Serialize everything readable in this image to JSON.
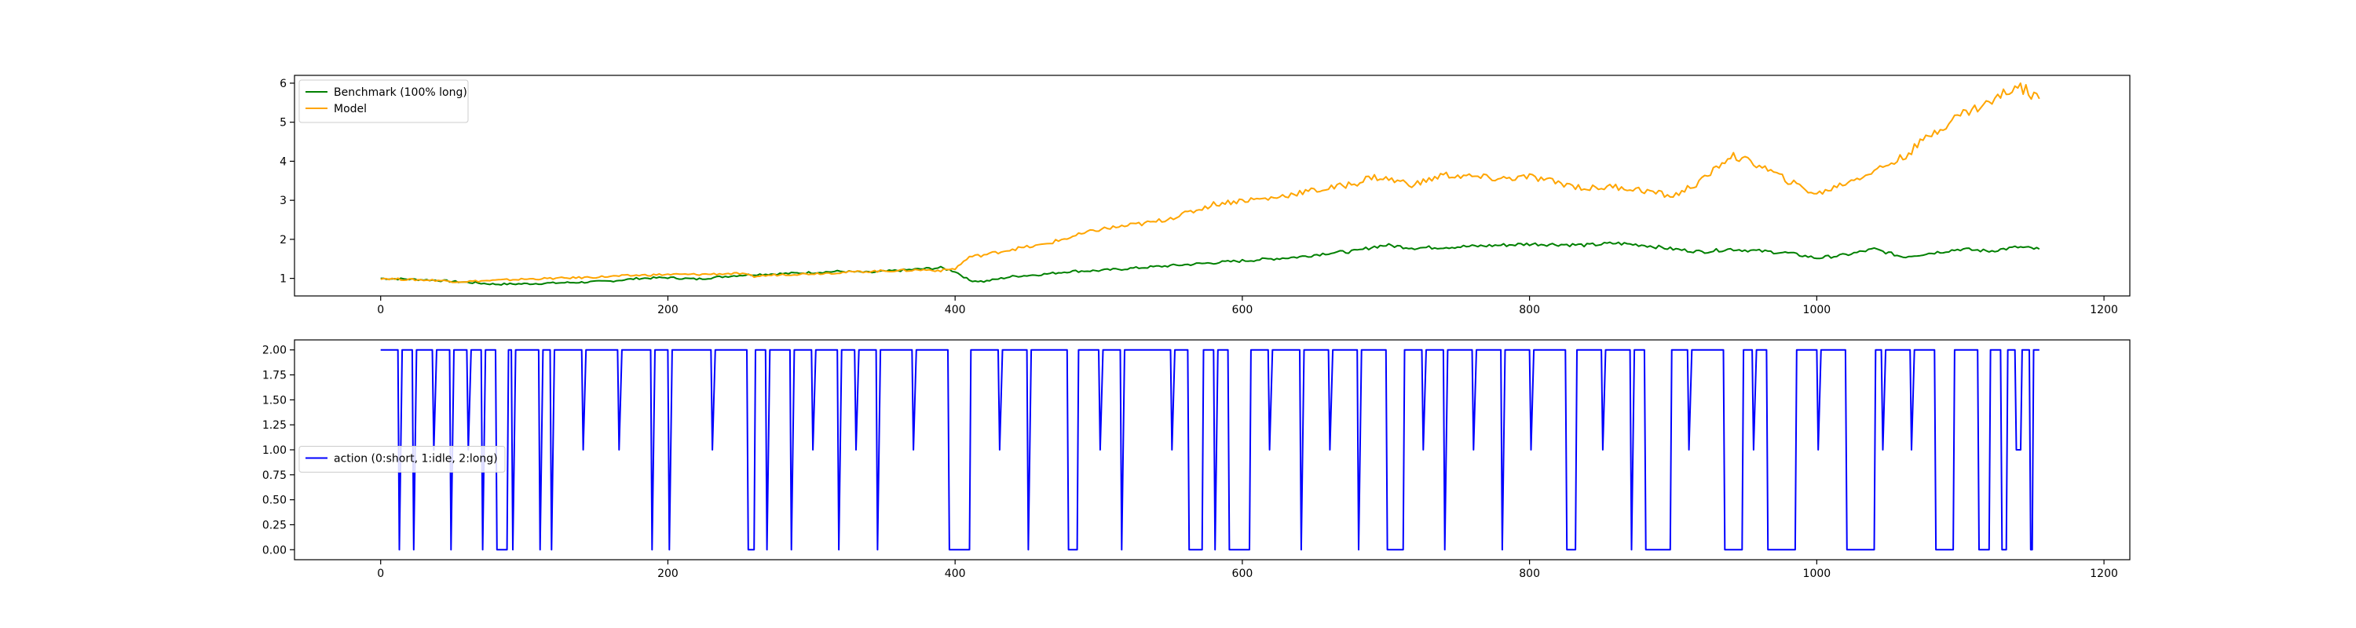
{
  "chart_data": [
    {
      "type": "line",
      "title": "",
      "xlabel": "",
      "ylabel": "",
      "xlim": [
        -60,
        1218
      ],
      "ylim": [
        0.55,
        6.2
      ],
      "xticks": [
        0,
        200,
        400,
        600,
        800,
        1000,
        1200
      ],
      "yticks": [
        1,
        2,
        3,
        4,
        5,
        6
      ],
      "grid": false,
      "legend": {
        "placement": "upper-left"
      },
      "series": [
        {
          "name": "Benchmark (100% long)",
          "color": "#008000",
          "x": [
            0,
            20,
            40,
            50,
            60,
            80,
            100,
            120,
            140,
            160,
            180,
            200,
            220,
            240,
            250,
            260,
            280,
            300,
            320,
            340,
            360,
            380,
            390,
            400,
            410,
            420,
            440,
            460,
            480,
            500,
            520,
            540,
            560,
            580,
            600,
            620,
            640,
            660,
            680,
            690,
            700,
            720,
            740,
            760,
            780,
            800,
            820,
            840,
            860,
            880,
            900,
            920,
            940,
            960,
            980,
            1000,
            1020,
            1040,
            1060,
            1080,
            1100,
            1120,
            1140,
            1155
          ],
          "y": [
            1.0,
            0.98,
            0.95,
            0.92,
            0.9,
            0.85,
            0.86,
            0.88,
            0.9,
            0.93,
            1.0,
            1.02,
            0.98,
            1.05,
            1.08,
            1.1,
            1.12,
            1.15,
            1.18,
            1.15,
            1.2,
            1.25,
            1.27,
            1.18,
            0.95,
            0.92,
            1.05,
            1.1,
            1.18,
            1.2,
            1.25,
            1.3,
            1.35,
            1.4,
            1.45,
            1.5,
            1.55,
            1.65,
            1.7,
            1.8,
            1.85,
            1.78,
            1.8,
            1.82,
            1.85,
            1.88,
            1.87,
            1.85,
            1.9,
            1.85,
            1.75,
            1.68,
            1.75,
            1.7,
            1.65,
            1.52,
            1.6,
            1.75,
            1.55,
            1.65,
            1.75,
            1.7,
            1.8,
            1.75
          ]
        },
        {
          "name": "Model",
          "color": "#FFA500",
          "x": [
            0,
            20,
            40,
            50,
            60,
            80,
            100,
            120,
            140,
            160,
            180,
            200,
            220,
            240,
            250,
            260,
            280,
            300,
            320,
            340,
            360,
            380,
            390,
            400,
            410,
            420,
            440,
            460,
            480,
            500,
            520,
            540,
            560,
            580,
            600,
            620,
            640,
            660,
            680,
            690,
            700,
            720,
            740,
            760,
            780,
            800,
            820,
            840,
            860,
            880,
            900,
            920,
            940,
            960,
            980,
            1000,
            1020,
            1040,
            1060,
            1080,
            1100,
            1120,
            1140,
            1155
          ],
          "y": [
            1.0,
            0.97,
            0.95,
            0.92,
            0.92,
            0.95,
            0.98,
            1.0,
            1.02,
            1.05,
            1.08,
            1.1,
            1.1,
            1.12,
            1.12,
            1.05,
            1.1,
            1.12,
            1.15,
            1.18,
            1.2,
            1.22,
            1.2,
            1.25,
            1.55,
            1.6,
            1.75,
            1.85,
            2.05,
            2.25,
            2.35,
            2.45,
            2.65,
            2.9,
            3.0,
            3.05,
            3.2,
            3.3,
            3.45,
            3.6,
            3.55,
            3.4,
            3.65,
            3.6,
            3.55,
            3.6,
            3.45,
            3.3,
            3.35,
            3.25,
            3.1,
            3.5,
            4.15,
            3.9,
            3.5,
            3.15,
            3.45,
            3.75,
            4.1,
            4.7,
            5.2,
            5.5,
            5.95,
            5.6
          ]
        }
      ]
    },
    {
      "type": "line",
      "title": "",
      "xlabel": "",
      "ylabel": "",
      "xlim": [
        -60,
        1218
      ],
      "ylim": [
        -0.1,
        2.1
      ],
      "xticks": [
        0,
        200,
        400,
        600,
        800,
        1000,
        1200
      ],
      "yticks": [
        0.0,
        0.25,
        0.5,
        0.75,
        1.0,
        1.25,
        1.5,
        1.75,
        2.0
      ],
      "ytick_labels": [
        "0.00",
        "0.25",
        "0.50",
        "0.75",
        "1.00",
        "1.25",
        "1.50",
        "1.75",
        "2.00"
      ],
      "grid": false,
      "legend": {
        "placement": "center-left"
      },
      "series": [
        {
          "name": "action (0:short, 1:idle, 2:long)",
          "color": "#0000FF",
          "segments": [
            [
              0,
              2
            ],
            [
              12,
              2
            ],
            [
              13,
              0
            ],
            [
              15,
              2
            ],
            [
              22,
              2
            ],
            [
              23,
              0
            ],
            [
              25,
              2
            ],
            [
              36,
              2
            ],
            [
              37,
              1
            ],
            [
              39,
              2
            ],
            [
              48,
              2
            ],
            [
              49,
              0
            ],
            [
              51,
              2
            ],
            [
              60,
              2
            ],
            [
              61,
              1
            ],
            [
              63,
              2
            ],
            [
              70,
              2
            ],
            [
              71,
              0
            ],
            [
              73,
              2
            ],
            [
              80,
              2
            ],
            [
              81,
              0
            ],
            [
              88,
              0
            ],
            [
              89,
              2
            ],
            [
              91,
              2
            ],
            [
              92,
              0
            ],
            [
              94,
              2
            ],
            [
              110,
              2
            ],
            [
              111,
              0
            ],
            [
              113,
              2
            ],
            [
              118,
              2
            ],
            [
              119,
              0
            ],
            [
              121,
              2
            ],
            [
              140,
              2
            ],
            [
              141,
              1
            ],
            [
              143,
              2
            ],
            [
              165,
              2
            ],
            [
              166,
              1
            ],
            [
              168,
              2
            ],
            [
              188,
              2
            ],
            [
              189,
              0
            ],
            [
              191,
              2
            ],
            [
              200,
              2
            ],
            [
              201,
              0
            ],
            [
              203,
              2
            ],
            [
              230,
              2
            ],
            [
              231,
              1
            ],
            [
              233,
              2
            ],
            [
              255,
              2
            ],
            [
              256,
              0
            ],
            [
              260,
              0
            ],
            [
              261,
              2
            ],
            [
              268,
              2
            ],
            [
              269,
              0
            ],
            [
              271,
              2
            ],
            [
              285,
              2
            ],
            [
              286,
              0
            ],
            [
              288,
              2
            ],
            [
              300,
              2
            ],
            [
              301,
              1
            ],
            [
              303,
              2
            ],
            [
              318,
              2
            ],
            [
              319,
              0
            ],
            [
              321,
              2
            ],
            [
              330,
              2
            ],
            [
              331,
              1
            ],
            [
              333,
              2
            ],
            [
              345,
              2
            ],
            [
              346,
              0
            ],
            [
              348,
              2
            ],
            [
              370,
              2
            ],
            [
              371,
              1
            ],
            [
              373,
              2
            ],
            [
              395,
              2
            ],
            [
              396,
              0
            ],
            [
              410,
              0
            ],
            [
              411,
              2
            ],
            [
              430,
              2
            ],
            [
              431,
              1
            ],
            [
              433,
              2
            ],
            [
              450,
              2
            ],
            [
              451,
              0
            ],
            [
              453,
              2
            ],
            [
              478,
              2
            ],
            [
              479,
              0
            ],
            [
              485,
              0
            ],
            [
              486,
              2
            ],
            [
              500,
              2
            ],
            [
              501,
              1
            ],
            [
              503,
              2
            ],
            [
              515,
              2
            ],
            [
              516,
              0
            ],
            [
              518,
              2
            ],
            [
              550,
              2
            ],
            [
              551,
              1
            ],
            [
              553,
              2
            ],
            [
              562,
              2
            ],
            [
              563,
              0
            ],
            [
              572,
              0
            ],
            [
              573,
              2
            ],
            [
              580,
              2
            ],
            [
              581,
              0
            ],
            [
              583,
              2
            ],
            [
              590,
              2
            ],
            [
              591,
              0
            ],
            [
              605,
              0
            ],
            [
              606,
              2
            ],
            [
              618,
              2
            ],
            [
              619,
              1
            ],
            [
              621,
              2
            ],
            [
              640,
              2
            ],
            [
              641,
              0
            ],
            [
              643,
              2
            ],
            [
              660,
              2
            ],
            [
              661,
              1
            ],
            [
              663,
              2
            ],
            [
              680,
              2
            ],
            [
              681,
              0
            ],
            [
              683,
              2
            ],
            [
              700,
              2
            ],
            [
              701,
              0
            ],
            [
              712,
              0
            ],
            [
              713,
              2
            ],
            [
              725,
              2
            ],
            [
              726,
              1
            ],
            [
              728,
              2
            ],
            [
              740,
              2
            ],
            [
              741,
              0
            ],
            [
              743,
              2
            ],
            [
              760,
              2
            ],
            [
              761,
              1
            ],
            [
              763,
              2
            ],
            [
              780,
              2
            ],
            [
              781,
              0
            ],
            [
              783,
              2
            ],
            [
              800,
              2
            ],
            [
              801,
              1
            ],
            [
              803,
              2
            ],
            [
              825,
              2
            ],
            [
              826,
              0
            ],
            [
              832,
              0
            ],
            [
              833,
              2
            ],
            [
              850,
              2
            ],
            [
              851,
              1
            ],
            [
              853,
              2
            ],
            [
              870,
              2
            ],
            [
              871,
              0
            ],
            [
              873,
              2
            ],
            [
              880,
              2
            ],
            [
              881,
              0
            ],
            [
              898,
              0
            ],
            [
              899,
              2
            ],
            [
              910,
              2
            ],
            [
              911,
              1
            ],
            [
              913,
              2
            ],
            [
              935,
              2
            ],
            [
              936,
              0
            ],
            [
              948,
              0
            ],
            [
              949,
              2
            ],
            [
              955,
              2
            ],
            [
              956,
              1
            ],
            [
              958,
              2
            ],
            [
              965,
              2
            ],
            [
              966,
              0
            ],
            [
              985,
              0
            ],
            [
              986,
              2
            ],
            [
              1000,
              2
            ],
            [
              1001,
              1
            ],
            [
              1003,
              2
            ],
            [
              1020,
              2
            ],
            [
              1021,
              0
            ],
            [
              1040,
              0
            ],
            [
              1041,
              2
            ],
            [
              1045,
              2
            ],
            [
              1046,
              1
            ],
            [
              1048,
              2
            ],
            [
              1065,
              2
            ],
            [
              1066,
              1
            ],
            [
              1068,
              2
            ],
            [
              1082,
              2
            ],
            [
              1083,
              0
            ],
            [
              1095,
              0
            ],
            [
              1096,
              2
            ],
            [
              1112,
              2
            ],
            [
              1113,
              0
            ],
            [
              1120,
              0
            ],
            [
              1121,
              2
            ],
            [
              1128,
              2
            ],
            [
              1129,
              0
            ],
            [
              1132,
              0
            ],
            [
              1133,
              2
            ],
            [
              1138,
              2
            ],
            [
              1139,
              1
            ],
            [
              1142,
              1
            ],
            [
              1143,
              2
            ],
            [
              1148,
              2
            ],
            [
              1149,
              0
            ],
            [
              1150,
              0
            ],
            [
              1151,
              2
            ],
            [
              1155,
              2
            ]
          ]
        }
      ]
    }
  ]
}
